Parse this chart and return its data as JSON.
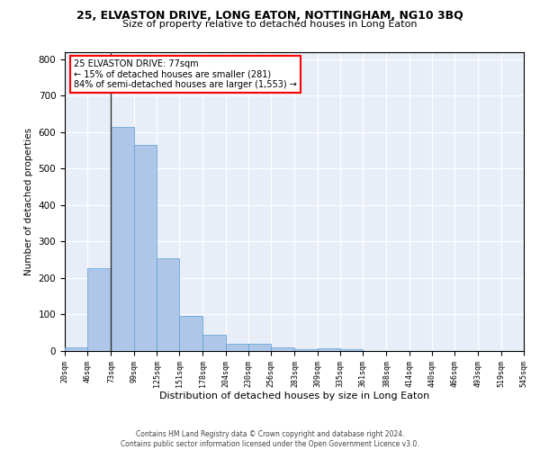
{
  "title": "25, ELVASTON DRIVE, LONG EATON, NOTTINGHAM, NG10 3BQ",
  "subtitle": "Size of property relative to detached houses in Long Eaton",
  "xlabel": "Distribution of detached houses by size in Long Eaton",
  "ylabel": "Number of detached properties",
  "bar_color": "#aec6e8",
  "bar_edge_color": "#5a9fd4",
  "background_color": "#e8eef8",
  "grid_color": "white",
  "annotation_line1": "25 ELVASTON DRIVE: 77sqm",
  "annotation_line2": "← 15% of detached houses are smaller (281)",
  "annotation_line3": "84% of semi-detached houses are larger (1,553) →",
  "annotation_box_color": "white",
  "annotation_box_edge_color": "red",
  "vline_x": 73,
  "vline_color": "#333333",
  "footer_line1": "Contains HM Land Registry data © Crown copyright and database right 2024.",
  "footer_line2": "Contains public sector information licensed under the Open Government Licence v3.0.",
  "bin_edges": [
    20,
    46,
    73,
    99,
    125,
    151,
    178,
    204,
    230,
    256,
    283,
    309,
    335,
    361,
    388,
    414,
    440,
    466,
    493,
    519,
    545
  ],
  "bin_values": [
    10,
    228,
    615,
    565,
    253,
    97,
    44,
    20,
    20,
    10,
    5,
    8,
    5,
    0,
    0,
    0,
    0,
    0,
    0,
    0
  ],
  "ylim": [
    0,
    820
  ],
  "yticks": [
    0,
    100,
    200,
    300,
    400,
    500,
    600,
    700,
    800
  ],
  "tick_labels": [
    "20sqm",
    "46sqm",
    "73sqm",
    "99sqm",
    "125sqm",
    "151sqm",
    "178sqm",
    "204sqm",
    "230sqm",
    "256sqm",
    "283sqm",
    "309sqm",
    "335sqm",
    "361sqm",
    "388sqm",
    "414sqm",
    "440sqm",
    "466sqm",
    "493sqm",
    "519sqm",
    "545sqm"
  ]
}
